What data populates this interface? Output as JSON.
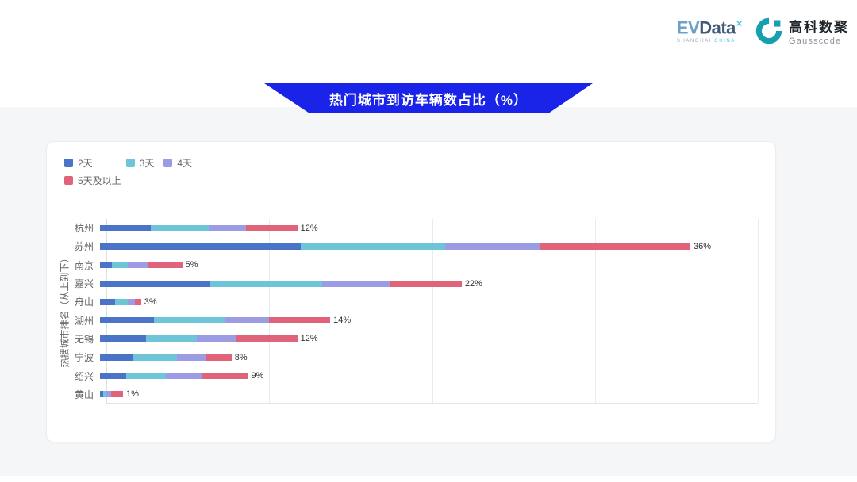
{
  "header": {
    "evdata_logo": {
      "ev": "EV",
      "data": "Data",
      "sup": "×",
      "sub_left": "SHANGHAI",
      "sub_right": "CHINA"
    },
    "gausscode_logo": {
      "cn": "高科数聚",
      "en": "Gausscode",
      "icon_color": "#169fb0"
    }
  },
  "banner": {
    "title": "热门城市到访车辆数占比（%）",
    "color": "#1a23e8"
  },
  "chart_data": {
    "type": "bar",
    "orientation": "horizontal",
    "stacked": true,
    "title": "热门城市到访车辆数占比（%）",
    "ylabel": "热搜城市排名（从上到下）",
    "xlabel": "",
    "xlim": [
      0,
      40
    ],
    "grid": true,
    "gridline_step": 10,
    "legend_position": "top-left",
    "categories": [
      "杭州",
      "苏州",
      "南京",
      "嘉兴",
      "舟山",
      "湖州",
      "无锡",
      "宁波",
      "绍兴",
      "黄山"
    ],
    "series": [
      {
        "name": "2天",
        "color": "#4b74c9",
        "values": [
          3.1,
          12.2,
          0.7,
          6.7,
          0.9,
          3.3,
          2.8,
          2.0,
          1.6,
          0.2
        ]
      },
      {
        "name": "3天",
        "color": "#6ec5d8",
        "values": [
          3.5,
          8.8,
          1.0,
          6.8,
          0.8,
          4.3,
          3.1,
          2.7,
          2.4,
          0.2
        ]
      },
      {
        "name": "4天",
        "color": "#9b9ce4",
        "values": [
          2.3,
          5.8,
          1.2,
          4.1,
          0.4,
          2.7,
          2.4,
          1.7,
          2.2,
          0.3
        ]
      },
      {
        "name": "5天及以上",
        "color": "#e06379",
        "values": [
          3.1,
          9.1,
          2.1,
          4.4,
          0.4,
          3.7,
          3.7,
          1.6,
          2.8,
          0.7
        ]
      }
    ],
    "total_labels": [
      "12%",
      "36%",
      "5%",
      "22%",
      "3%",
      "14%",
      "12%",
      "8%",
      "9%",
      "1%"
    ]
  }
}
